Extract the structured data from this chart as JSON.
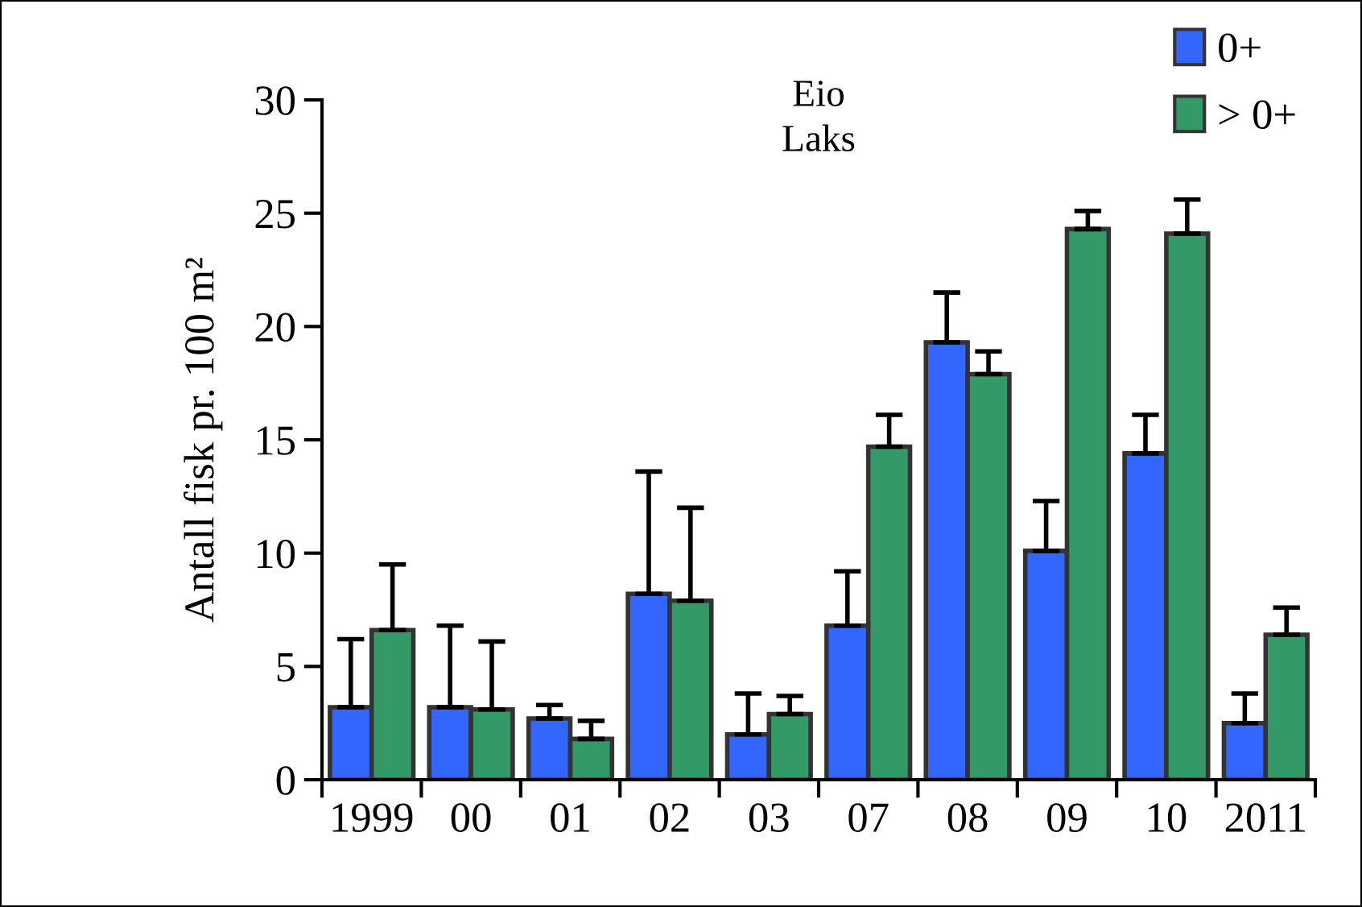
{
  "chart_data": {
    "type": "bar",
    "title": "Eio\nLaks",
    "ylabel": "Antall fisk pr. 100 m²",
    "categories": [
      "1999",
      "00",
      "01",
      "02",
      "03",
      "07",
      "08",
      "09",
      "10",
      "2011"
    ],
    "series": [
      {
        "name": "0+",
        "color": "#3366ff",
        "values": [
          3.2,
          3.2,
          2.7,
          8.2,
          2.0,
          6.8,
          19.3,
          10.1,
          14.4,
          2.5
        ],
        "errors": [
          [
            3.2,
            6.2
          ],
          [
            3.2,
            6.8
          ],
          [
            2.7,
            3.3
          ],
          [
            8.2,
            13.6
          ],
          [
            2.0,
            3.8
          ],
          [
            6.8,
            9.2
          ],
          [
            19.3,
            21.5
          ],
          [
            10.1,
            12.3
          ],
          [
            14.4,
            16.1
          ],
          [
            2.5,
            3.8
          ]
        ]
      },
      {
        "name": "> 0+",
        "color": "#339966",
        "values": [
          6.6,
          3.1,
          1.8,
          7.9,
          2.9,
          14.7,
          17.9,
          24.3,
          24.1,
          6.4
        ],
        "errors": [
          [
            6.6,
            9.5
          ],
          [
            3.1,
            6.1
          ],
          [
            1.8,
            2.6
          ],
          [
            7.9,
            12.0
          ],
          [
            2.9,
            3.7
          ],
          [
            14.7,
            16.1
          ],
          [
            17.9,
            18.9
          ],
          [
            24.3,
            25.1
          ],
          [
            24.1,
            25.6
          ],
          [
            6.4,
            7.6
          ]
        ]
      }
    ],
    "ylim": [
      0,
      30
    ],
    "yticks": [
      0,
      5,
      10,
      15,
      20,
      25,
      30
    ],
    "grid": false,
    "legend": "top right"
  }
}
